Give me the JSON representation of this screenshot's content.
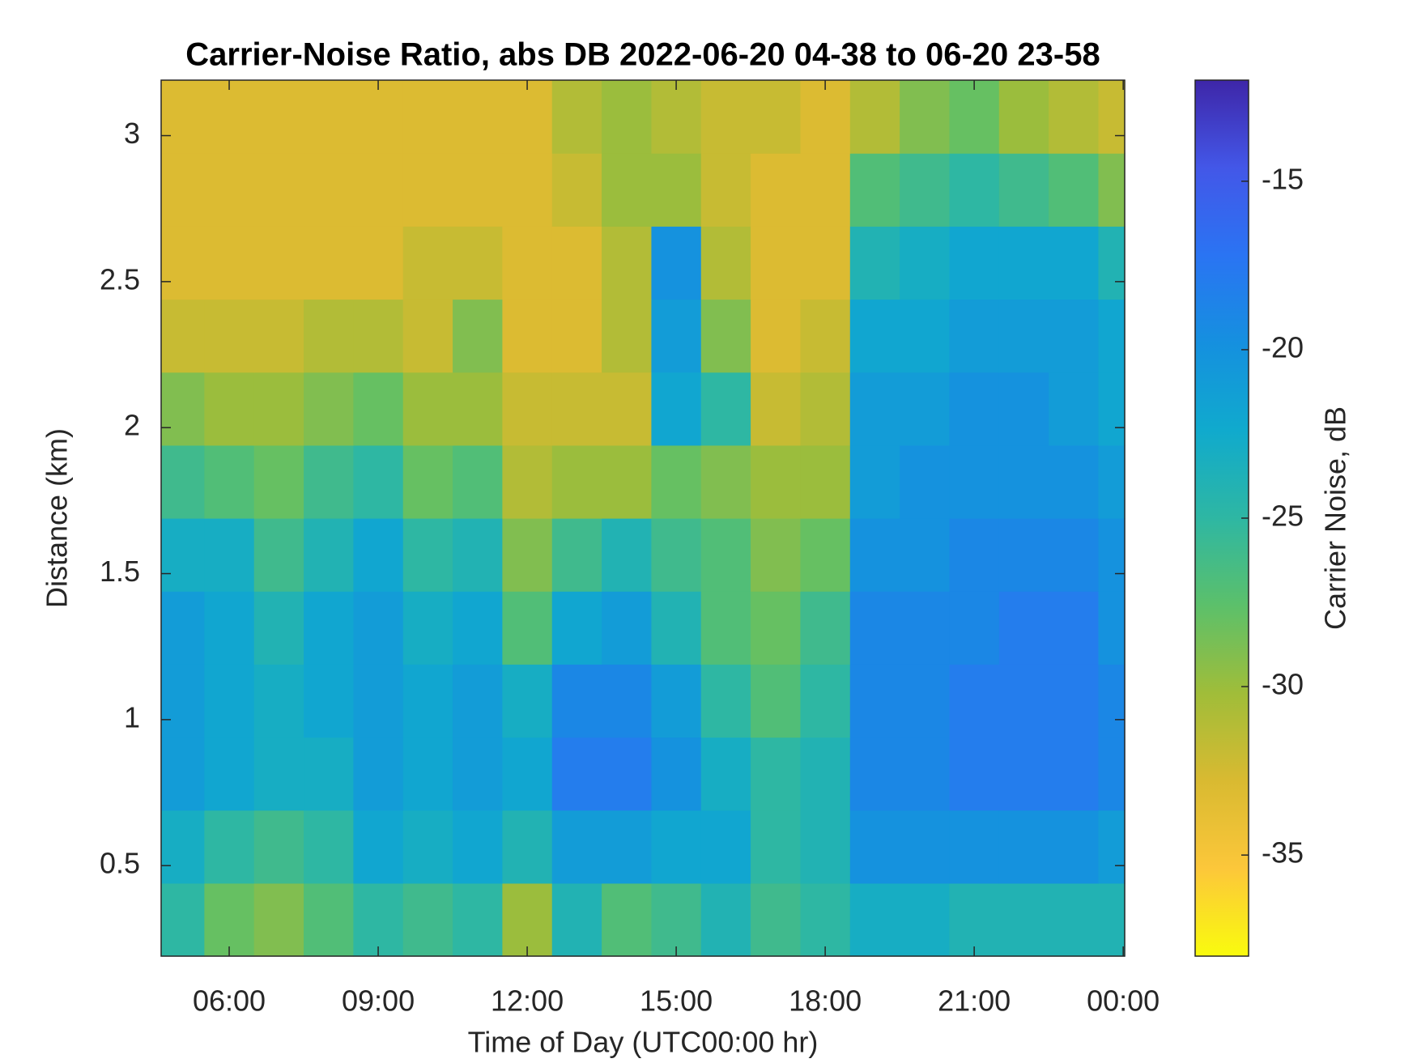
{
  "chart_data": {
    "type": "heatmap",
    "title": "Carrier-Noise Ratio, abs DB 2022-06-20 04-38 to 06-20 23-58",
    "x_label": "Time of Day (UTC00:00 hr)",
    "y_label": "Distance (km)",
    "colorbar_label": "Carrier Noise, dB",
    "xbins": [
      4.63,
      5.5,
      6.5,
      7.5,
      8.5,
      9.5,
      10.5,
      11.5,
      12.5,
      13.5,
      14.5,
      15.5,
      16.5,
      17.5,
      18.5,
      19.5,
      20.5,
      21.5,
      22.5,
      23.5,
      24.03
    ],
    "ybins": [
      0.19,
      0.44,
      0.69,
      0.94,
      1.19,
      1.44,
      1.69,
      1.94,
      2.19,
      2.44,
      2.69,
      2.94,
      3.19
    ],
    "values": [
      [
        -25,
        -28,
        -29,
        -27,
        -25,
        -26,
        -25,
        -30,
        -24,
        -27,
        -26,
        -24,
        -26,
        -25,
        -23,
        -23,
        -24,
        -24,
        -24,
        -24
      ],
      [
        -23,
        -25,
        -26,
        -25,
        -22,
        -23,
        -22,
        -24,
        -21,
        -21,
        -22,
        -22,
        -25,
        -24,
        -20,
        -20,
        -20,
        -20,
        -20,
        -21
      ],
      [
        -21,
        -22,
        -23,
        -23,
        -21,
        -22,
        -21,
        -22,
        -18,
        -18,
        -20,
        -23,
        -25,
        -24,
        -19,
        -19,
        -18,
        -18,
        -18,
        -19
      ],
      [
        -21,
        -22,
        -23,
        -22,
        -21,
        -22,
        -21,
        -23,
        -19,
        -19,
        -21,
        -25,
        -27,
        -25,
        -19,
        -19,
        -18,
        -18,
        -18,
        -19
      ],
      [
        -21,
        -22,
        -24,
        -22,
        -21,
        -23,
        -22,
        -27,
        -22,
        -21,
        -24,
        -27,
        -28,
        -26,
        -19,
        -19,
        -19,
        -18,
        -18,
        -20
      ],
      [
        -23,
        -23,
        -26,
        -24,
        -22,
        -25,
        -24,
        -29,
        -26,
        -24,
        -26,
        -27,
        -29,
        -28,
        -20,
        -20,
        -19,
        -19,
        -19,
        -20
      ],
      [
        -26,
        -27,
        -28,
        -26,
        -25,
        -28,
        -27,
        -31,
        -30,
        -30,
        -28,
        -29,
        -30,
        -30,
        -21,
        -20,
        -20,
        -20,
        -20,
        -21
      ],
      [
        -29,
        -30,
        -30,
        -29,
        -28,
        -30,
        -30,
        -32,
        -32,
        -32,
        -22,
        -25,
        -32,
        -31,
        -21,
        -21,
        -20,
        -20,
        -21,
        -22
      ],
      [
        -32,
        -32,
        -32,
        -31,
        -31,
        -32,
        -29,
        -33,
        -33,
        -31,
        -21,
        -29,
        -33,
        -32,
        -22,
        -22,
        -21,
        -21,
        -21,
        -22
      ],
      [
        -33,
        -33,
        -33,
        -33,
        -33,
        -32,
        -32,
        -33,
        -33,
        -31,
        -20,
        -31,
        -33,
        -33,
        -24,
        -23,
        -22,
        -22,
        -22,
        -24
      ],
      [
        -33,
        -33,
        -33,
        -33,
        -33,
        -33,
        -33,
        -33,
        -32,
        -30,
        -30,
        -32,
        -33,
        -33,
        -27,
        -26,
        -25,
        -26,
        -27,
        -29
      ],
      [
        -33,
        -33,
        -33,
        -33,
        -33,
        -33,
        -33,
        -33,
        -31,
        -30,
        -31,
        -32,
        -32,
        -33,
        -31,
        -29,
        -28,
        -30,
        -31,
        -32
      ]
    ],
    "xlim": [
      4.63,
      24.03
    ],
    "xticks": [
      {
        "value": 6,
        "label": "06:00"
      },
      {
        "value": 9,
        "label": "09:00"
      },
      {
        "value": 12,
        "label": "12:00"
      },
      {
        "value": 15,
        "label": "15:00"
      },
      {
        "value": 18,
        "label": "18:00"
      },
      {
        "value": 21,
        "label": "21:00"
      },
      {
        "value": 24,
        "label": "00:00"
      }
    ],
    "ylim": [
      0.19,
      3.19
    ],
    "yticks": [
      0.5,
      1,
      1.5,
      2,
      2.5,
      3
    ],
    "clim": [
      -38,
      -12
    ],
    "cticks": [
      -35,
      -30,
      -25,
      -20,
      -15
    ],
    "colormap": [
      "#f9fb0e",
      "#fcc73a",
      "#d9ba31",
      "#a0bd39",
      "#5cc06a",
      "#2eb7a3",
      "#10aacd",
      "#1590df",
      "#2a74f3",
      "#4357e8",
      "#3e26a8"
    ],
    "grid": false
  }
}
